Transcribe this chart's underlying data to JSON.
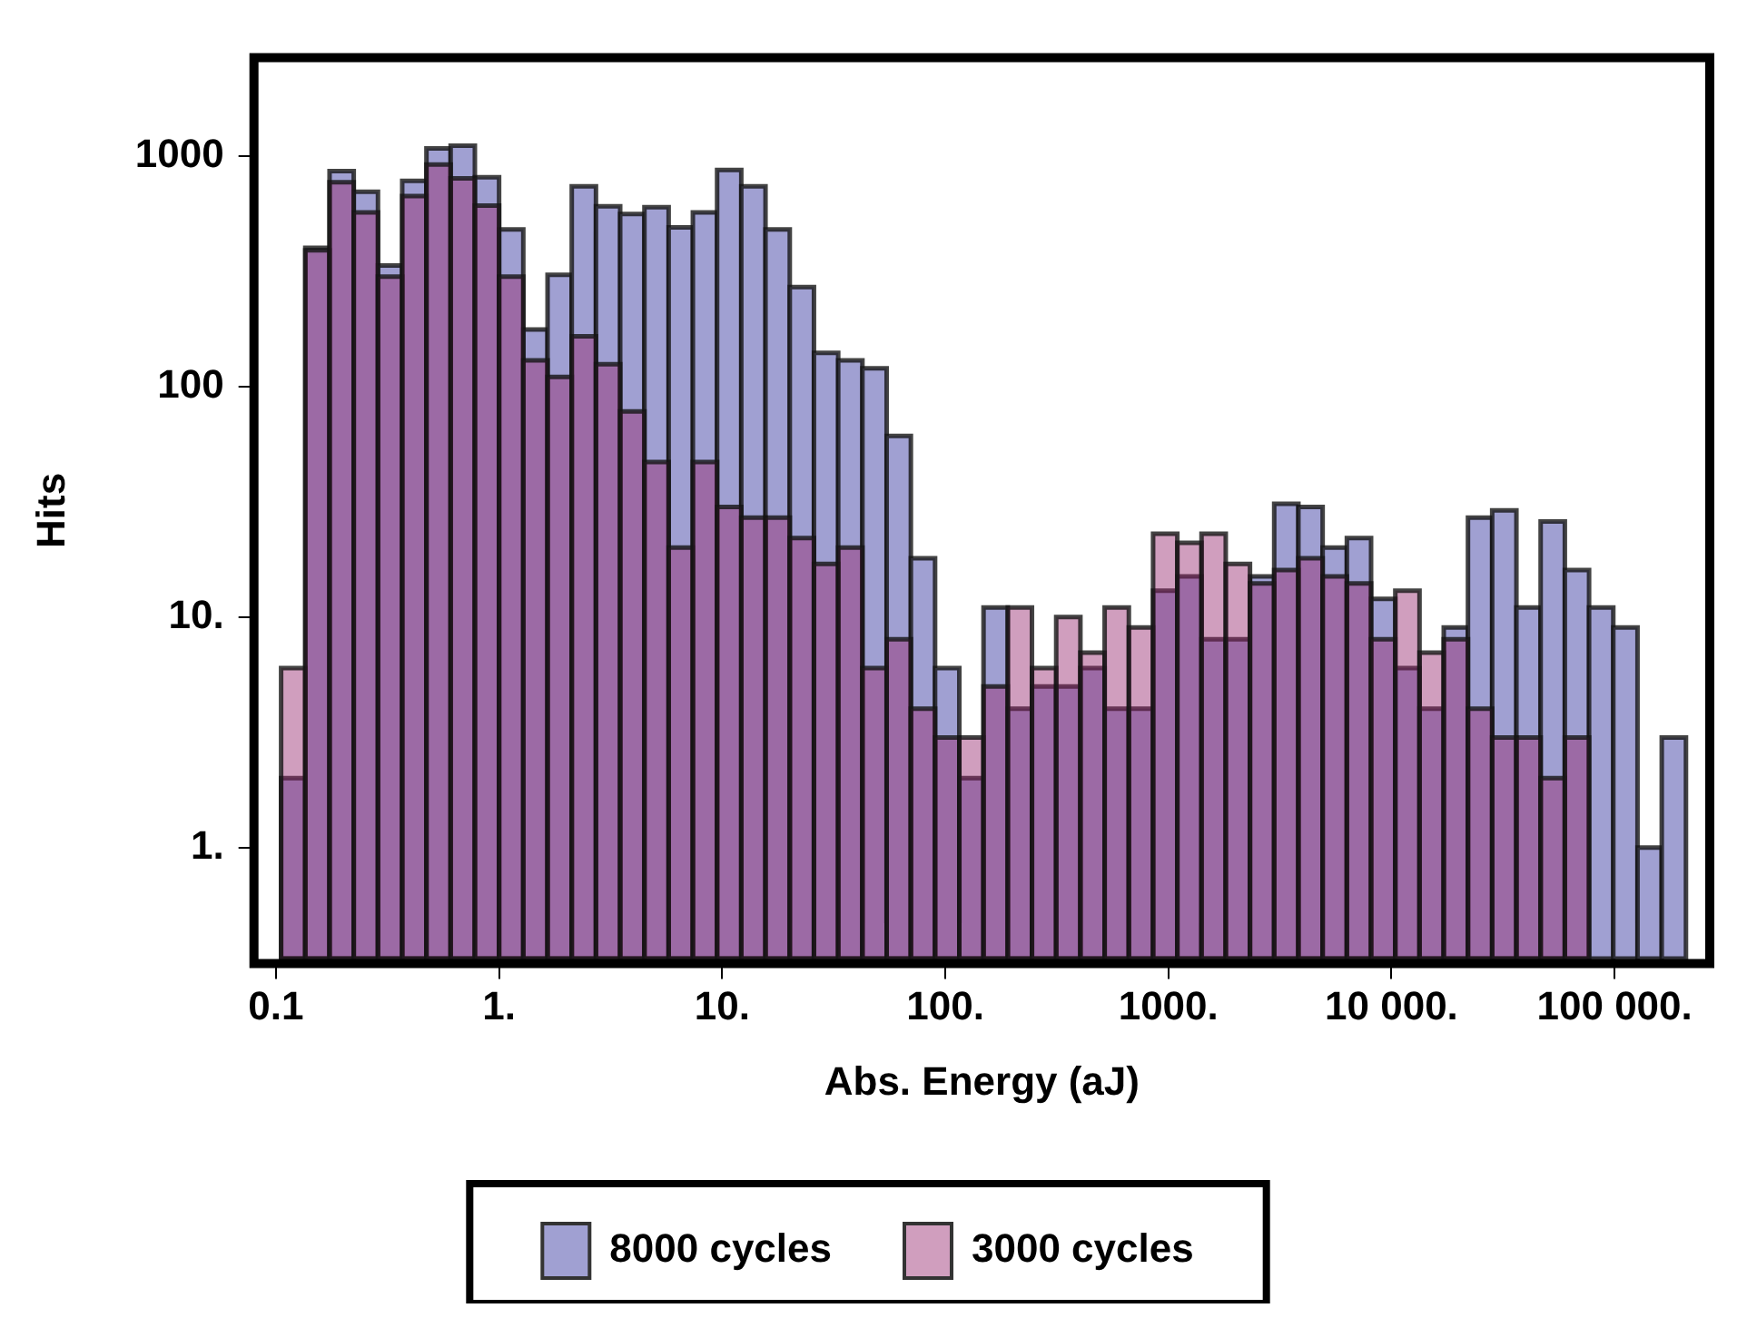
{
  "chart_data": {
    "type": "histogram",
    "xlabel": "Abs. Energy (aJ)",
    "ylabel": "Hits",
    "log": "xy",
    "legend": "bottom",
    "bins": [
      0.1054,
      0.1353,
      0.1738,
      0.2231,
      0.2865,
      0.3679,
      0.4724,
      0.6065,
      0.7788,
      1,
      1.284,
      1.649,
      2.117,
      2.718,
      3.49,
      4.482,
      5.755,
      7.389,
      9.488,
      12.18,
      15.64,
      20.09,
      25.79,
      33.12,
      42.52,
      54.6,
      70.11,
      90.02,
      115.6,
      148.4,
      190.6,
      244.7,
      314.2,
      403.4,
      518,
      665.1,
      854.1,
      1097,
      1408,
      1808,
      2322,
      2981,
      3827,
      4915,
      6311,
      8103,
      10405,
      13360,
      17154,
      22026,
      28283,
      36316,
      46630,
      59874,
      76880,
      98716,
      126753,
      162755,
      208981
    ],
    "series": [
      {
        "name": "8000 cycles",
        "color": "#a0a0d2",
        "values": [
          2,
          400,
          860,
          700,
          335,
          780,
          1080,
          1110,
          810,
          480,
          177,
          305,
          740,
          605,
          560,
          600,
          490,
          570,
          870,
          740,
          480,
          270,
          140,
          130,
          120,
          61,
          18,
          6,
          2,
          11,
          4,
          5,
          5,
          6,
          4,
          4,
          13,
          15,
          8,
          8,
          15,
          31,
          30,
          20,
          22,
          12,
          6,
          4,
          9,
          27,
          29,
          11,
          26,
          16,
          11,
          9,
          1,
          3
        ]
      },
      {
        "name": "3000 cycles",
        "color": "#d09ebe",
        "values": [
          6,
          390,
          770,
          570,
          300,
          670,
          920,
          800,
          610,
          300,
          130,
          110,
          165,
          125,
          78,
          47,
          20,
          47,
          30,
          27,
          27,
          22,
          17,
          20,
          6,
          8,
          4,
          3,
          3,
          5,
          11,
          6,
          10,
          7,
          11,
          9,
          23,
          21,
          23,
          17,
          14,
          16,
          18,
          15,
          14,
          8,
          13,
          7,
          8,
          4,
          3,
          3,
          2,
          3,
          null,
          null,
          null,
          null
        ]
      }
    ],
    "xlim": [
      0.076,
      280000
    ],
    "ylim": [
      0.33,
      2800
    ],
    "xticks": [
      0.1,
      {
        "value": 1,
        "label": "1."
      },
      {
        "value": 10,
        "label": "10."
      },
      {
        "value": 100,
        "label": "100."
      },
      {
        "value": 1000,
        "label": "1000."
      },
      {
        "value": 10000,
        "label": "10 000."
      },
      {
        "value": 100000,
        "label": "100 000."
      }
    ],
    "yticks": [
      {
        "value": 1,
        "label": "1."
      },
      {
        "value": 10,
        "label": "10."
      },
      100,
      1000
    ]
  }
}
